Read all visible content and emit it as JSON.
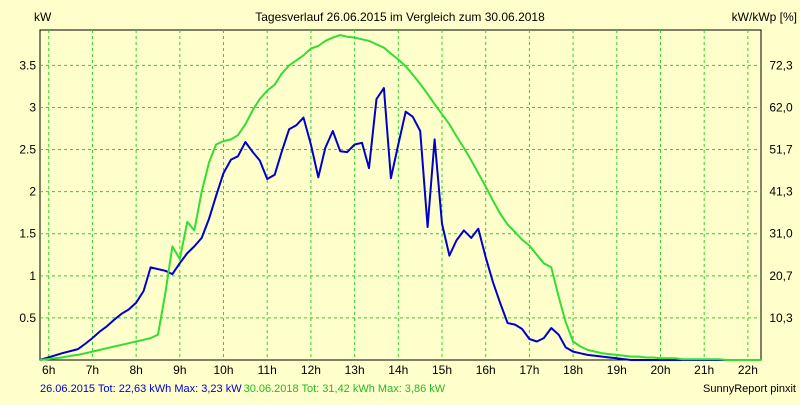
{
  "chart_data": {
    "type": "line",
    "title": "Tagesverlauf 26.06.2015 im Vergleich zum 30.06.2018",
    "ylabel": "kW",
    "ylabel_right": "kW/kWp [%]",
    "footer_right": "SunnyReport pinxit",
    "x_ticks": [
      "6h",
      "7h",
      "8h",
      "9h",
      "10h",
      "11h",
      "12h",
      "13h",
      "14h",
      "15h",
      "16h",
      "17h",
      "18h",
      "19h",
      "20h",
      "21h",
      "22h"
    ],
    "y_ticks": [
      "0.5",
      "1",
      "1.5",
      "2",
      "2.5",
      "3",
      "3.5"
    ],
    "y_ticks_right": [
      "10,3",
      "20,7",
      "31,0",
      "41,3",
      "51,7",
      "62,0",
      "72,3"
    ],
    "xlim": [
      5.8,
      22.3
    ],
    "ylim": [
      0,
      3.92
    ],
    "grid": true,
    "colors": {
      "background": "#ffffcc",
      "grid": "#33cc33",
      "series1": "#0000cc",
      "series2": "#33dd33"
    },
    "series": [
      {
        "name": "26.06.2015",
        "summary": "26.06.2015 Tot: 22,63 kWh Max: 3,23 kW",
        "x": [
          5.8,
          6.3,
          6.67,
          6.83,
          7.0,
          7.17,
          7.33,
          7.5,
          7.67,
          7.83,
          8.0,
          8.17,
          8.33,
          8.5,
          8.67,
          8.83,
          9.0,
          9.17,
          9.33,
          9.5,
          9.67,
          9.83,
          10.0,
          10.17,
          10.33,
          10.5,
          10.67,
          10.83,
          11.0,
          11.17,
          11.33,
          11.5,
          11.67,
          11.83,
          12.0,
          12.17,
          12.33,
          12.5,
          12.67,
          12.83,
          13.0,
          13.17,
          13.33,
          13.5,
          13.67,
          13.83,
          14.0,
          14.17,
          14.33,
          14.5,
          14.67,
          14.83,
          15.0,
          15.17,
          15.33,
          15.5,
          15.67,
          15.83,
          16.0,
          16.17,
          16.33,
          16.5,
          16.67,
          16.83,
          17.0,
          17.17,
          17.33,
          17.5,
          17.67,
          17.83,
          18.0,
          18.17,
          18.33,
          18.5,
          18.67,
          18.83,
          19.0,
          19.17,
          19.33,
          19.5,
          19.67,
          19.83,
          20.0,
          20.17,
          20.33,
          20.5,
          20.67,
          20.83,
          21.0,
          21.33,
          21.67,
          22.0,
          22.3
        ],
        "values": [
          0.0,
          0.08,
          0.13,
          0.19,
          0.26,
          0.34,
          0.4,
          0.48,
          0.55,
          0.6,
          0.68,
          0.82,
          1.1,
          1.08,
          1.06,
          1.02,
          1.15,
          1.27,
          1.35,
          1.45,
          1.68,
          1.95,
          2.22,
          2.38,
          2.42,
          2.59,
          2.47,
          2.37,
          2.15,
          2.2,
          2.47,
          2.74,
          2.79,
          2.88,
          2.56,
          2.17,
          2.52,
          2.72,
          2.48,
          2.47,
          2.56,
          2.58,
          2.28,
          3.1,
          3.23,
          2.16,
          2.56,
          2.95,
          2.89,
          2.72,
          1.58,
          2.62,
          1.62,
          1.24,
          1.42,
          1.54,
          1.45,
          1.56,
          1.22,
          0.92,
          0.68,
          0.44,
          0.42,
          0.37,
          0.25,
          0.22,
          0.26,
          0.38,
          0.3,
          0.15,
          0.1,
          0.08,
          0.06,
          0.05,
          0.04,
          0.03,
          0.02,
          0.01,
          0.0,
          0.0,
          0.0,
          0.0,
          0.0,
          0.0,
          0.0,
          0.0,
          0.0,
          0.0,
          0.0,
          0.0,
          0.0,
          0.0,
          0.0
        ]
      },
      {
        "name": "30.06.2018",
        "summary": "30.06.2018 Tot: 31,42 kWh Max: 3,86 kW",
        "x": [
          5.8,
          6.3,
          6.5,
          6.67,
          6.83,
          7.0,
          7.17,
          7.33,
          7.5,
          7.67,
          7.83,
          8.0,
          8.17,
          8.33,
          8.5,
          8.67,
          8.83,
          9.0,
          9.17,
          9.33,
          9.5,
          9.67,
          9.83,
          10.0,
          10.17,
          10.33,
          10.5,
          10.67,
          10.83,
          11.0,
          11.17,
          11.33,
          11.5,
          11.67,
          11.83,
          12.0,
          12.17,
          12.33,
          12.5,
          12.67,
          12.83,
          13.0,
          13.17,
          13.33,
          13.5,
          13.67,
          13.83,
          14.0,
          14.17,
          14.33,
          14.5,
          14.67,
          14.83,
          15.0,
          15.17,
          15.33,
          15.5,
          15.67,
          15.83,
          16.0,
          16.17,
          16.33,
          16.5,
          16.67,
          16.83,
          17.0,
          17.17,
          17.33,
          17.5,
          17.67,
          17.83,
          18.0,
          18.17,
          18.33,
          18.5,
          18.67,
          18.83,
          19.0,
          19.17,
          19.33,
          19.5,
          19.67,
          19.83,
          20.0,
          20.17,
          20.33,
          20.5,
          20.67,
          20.83,
          21.0,
          21.17,
          21.33,
          21.5,
          21.67,
          21.83,
          22.0,
          22.17,
          22.3
        ],
        "values": [
          0.0,
          0.03,
          0.05,
          0.06,
          0.08,
          0.1,
          0.12,
          0.14,
          0.16,
          0.18,
          0.2,
          0.22,
          0.24,
          0.26,
          0.3,
          0.8,
          1.35,
          1.2,
          1.64,
          1.54,
          2.0,
          2.35,
          2.56,
          2.6,
          2.62,
          2.67,
          2.8,
          2.97,
          3.1,
          3.2,
          3.27,
          3.4,
          3.5,
          3.56,
          3.62,
          3.7,
          3.73,
          3.79,
          3.83,
          3.86,
          3.84,
          3.83,
          3.81,
          3.79,
          3.75,
          3.71,
          3.64,
          3.57,
          3.49,
          3.39,
          3.28,
          3.16,
          3.04,
          2.92,
          2.8,
          2.66,
          2.52,
          2.37,
          2.22,
          2.06,
          1.89,
          1.74,
          1.61,
          1.52,
          1.43,
          1.36,
          1.25,
          1.15,
          1.1,
          0.75,
          0.45,
          0.22,
          0.16,
          0.12,
          0.1,
          0.08,
          0.07,
          0.06,
          0.05,
          0.04,
          0.04,
          0.03,
          0.03,
          0.02,
          0.02,
          0.02,
          0.01,
          0.01,
          0.01,
          0.01,
          0.01,
          0.01,
          0.0,
          0.0,
          0.0,
          0.0,
          0.0,
          0.0
        ]
      }
    ]
  }
}
